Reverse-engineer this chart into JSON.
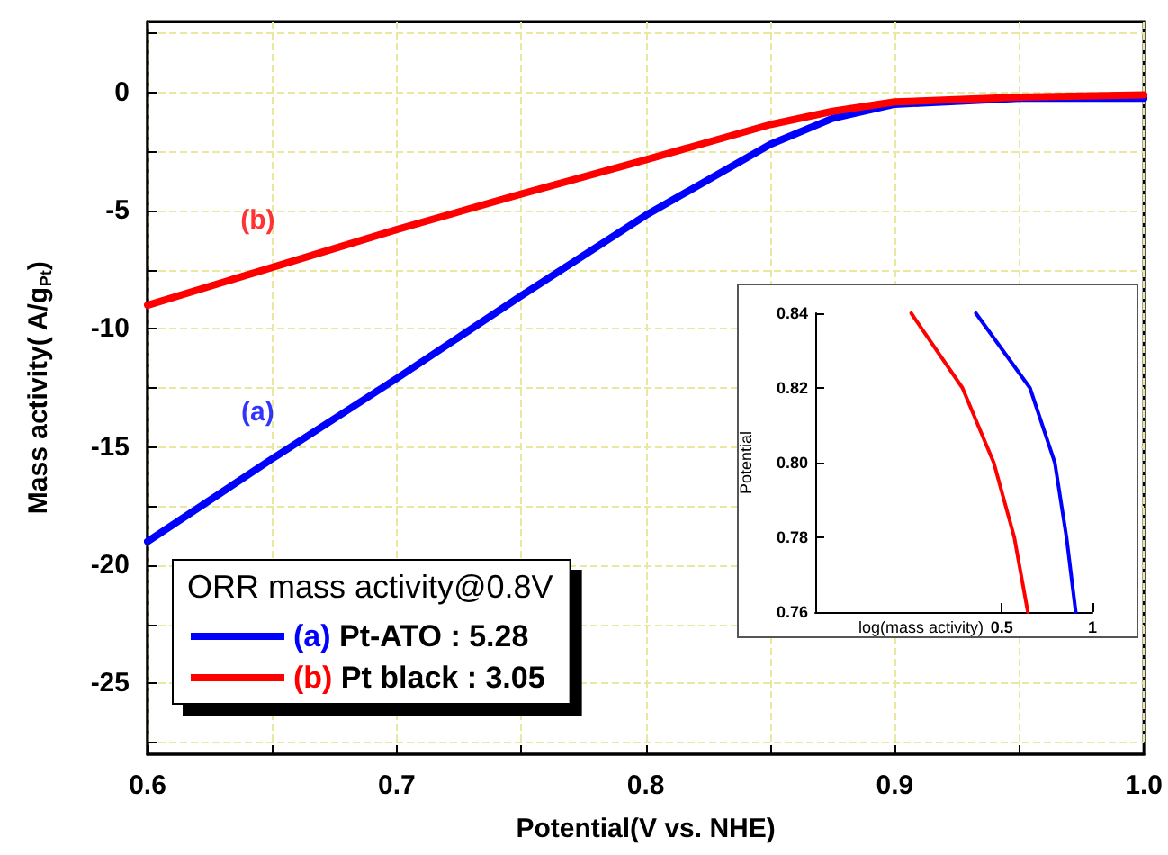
{
  "chart_data": [
    {
      "type": "line",
      "xlabel": "Potential(V vs. NHE)",
      "ylabel": "Mass activity( A/g$_{Pt}$)",
      "legend_title": "ORR mass activity@0.8V",
      "x": [
        0.6,
        0.65,
        0.7,
        0.75,
        0.8,
        0.85,
        0.875,
        0.9,
        0.95,
        1.0
      ],
      "series": [
        {
          "name": "(a) Pt-ATO : 5.28",
          "color": "#0000ff",
          "values": [
            -19,
            -15.5,
            -12.1,
            -8.6,
            -5.2,
            -2.2,
            -1.1,
            -0.5,
            -0.25,
            -0.25
          ]
        },
        {
          "name": "(b) Pt black : 3.05",
          "color": "#ff0000",
          "values": [
            -9,
            -7.4,
            -5.8,
            -4.3,
            -2.85,
            -1.36,
            -0.8,
            -0.4,
            -0.2,
            -0.1
          ]
        }
      ],
      "annotations": [
        "(a)",
        "(b)"
      ],
      "xlim": [
        0.6,
        1.0
      ],
      "xticks": [
        0.6,
        {
          "value": 0.65,
          "label": null
        },
        0.7,
        {
          "value": 0.75,
          "label": null
        },
        0.8,
        {
          "value": 0.85,
          "label": null
        },
        0.9,
        {
          "value": 0.95,
          "label": null
        },
        {
          "value": 1.0,
          "label": "1.0"
        }
      ],
      "ylim": [
        -28,
        3
      ],
      "yticks": [
        {
          "value": -27.5,
          "label": null
        },
        -25,
        {
          "value": -22.5,
          "label": null
        },
        -20,
        {
          "value": -17.5,
          "label": null
        },
        -15,
        {
          "value": -12.5,
          "label": null
        },
        -10,
        {
          "value": -7.5,
          "label": null
        },
        -5,
        {
          "value": -2.5,
          "label": null
        },
        0,
        {
          "value": 2.5,
          "label": null
        }
      ],
      "grid": true,
      "legend": "bottom left",
      "line_style": "solid"
    },
    {
      "type": "line",
      "xlabel": "log(mass activity)",
      "ylabel": "Potential",
      "log": "x",
      "series": [
        {
          "color": "#0000ff",
          "x": [
            0.41,
            0.62,
            0.75,
            0.82,
            0.88
          ],
          "values": [
            0.84,
            0.82,
            0.8,
            0.78,
            0.76
          ]
        },
        {
          "color": "#ff0000",
          "x": [
            0.25,
            0.37,
            0.47,
            0.55,
            0.61
          ],
          "values": [
            0.84,
            0.82,
            0.8,
            0.78,
            0.76
          ]
        }
      ],
      "xlim": [
        0.12,
        1
      ],
      "xticks": [
        0.5,
        1
      ],
      "ylim": [
        0.76,
        0.84
      ],
      "yticks": [
        0.76,
        0.78,
        {
          "value": 0.8,
          "label": "0.80"
        },
        0.82,
        0.84
      ],
      "grid": false,
      "legend": false,
      "line_style": "solid"
    }
  ]
}
